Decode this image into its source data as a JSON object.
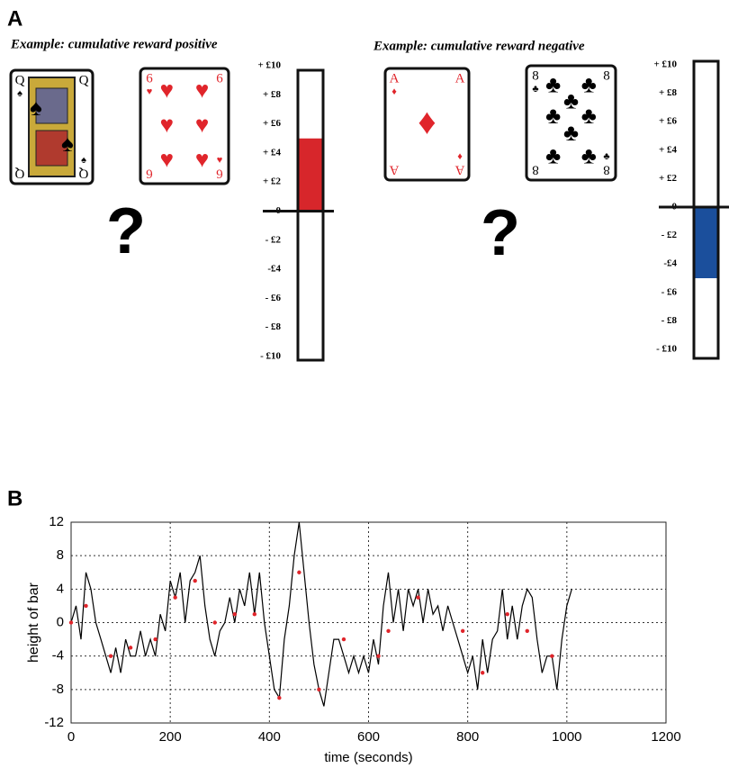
{
  "panel_a": {
    "label": "A",
    "examples": [
      {
        "title": "Example: cumulative reward positive",
        "cards": [
          {
            "rank": "Q",
            "suit": "♠",
            "color": "#000000"
          },
          {
            "rank": "6",
            "suit": "♥",
            "color": "#e0252b"
          }
        ],
        "question": "?",
        "ylim": [
          -10,
          10
        ],
        "ticks": [
          {
            "value": 10,
            "label": "+ £10"
          },
          {
            "value": 8,
            "label": "+ £8"
          },
          {
            "value": 6,
            "label": "+ £6"
          },
          {
            "value": 4,
            "label": "+ £4"
          },
          {
            "value": 2,
            "label": "+ £2"
          },
          0,
          {
            "value": -2,
            "label": "- £2"
          },
          {
            "value": -4,
            "label": "-£4"
          },
          {
            "value": -6,
            "label": "- £6"
          },
          {
            "value": -8,
            "label": "- £8"
          },
          {
            "value": -10,
            "label": "- £10"
          }
        ],
        "bar_value": 5,
        "bar_color": "#d7262b"
      },
      {
        "title": "Example: cumulative reward negative",
        "cards": [
          {
            "rank": "A",
            "suit": "♦",
            "color": "#e0252b"
          },
          {
            "rank": "8",
            "suit": "♣",
            "color": "#000000"
          }
        ],
        "question": "?",
        "ylim": [
          -10,
          10
        ],
        "ticks": [
          {
            "value": 10,
            "label": "+ £10"
          },
          {
            "value": 8,
            "label": "+ £8"
          },
          {
            "value": 6,
            "label": "+ £6"
          },
          {
            "value": 4,
            "label": "+ £4"
          },
          {
            "value": 2,
            "label": "+ £2"
          },
          0,
          {
            "value": -2,
            "label": "- £2"
          },
          {
            "value": -4,
            "label": "-£4"
          },
          {
            "value": -6,
            "label": "- £6"
          },
          {
            "value": -8,
            "label": "- £8"
          },
          {
            "value": -10,
            "label": "- £10"
          }
        ],
        "bar_value": -5,
        "bar_color": "#1b4f9c"
      }
    ]
  },
  "chart_data": {
    "type": "line",
    "panel_label": "B",
    "x_label": "time (seconds)",
    "y_label": "height of bar",
    "xlim": [
      0,
      1200
    ],
    "xticks": [
      0,
      200,
      400,
      600,
      800,
      1000,
      1200
    ],
    "ylim": [
      -12,
      12
    ],
    "yticks": [
      -12,
      -8,
      -4,
      0,
      4,
      8,
      12
    ],
    "grid": true,
    "series": [
      {
        "color": "#000000",
        "x": [
          0,
          10,
          20,
          30,
          40,
          50,
          60,
          70,
          80,
          90,
          100,
          110,
          120,
          130,
          140,
          150,
          160,
          170,
          180,
          190,
          200,
          210,
          220,
          230,
          240,
          250,
          260,
          270,
          280,
          290,
          300,
          310,
          320,
          330,
          340,
          350,
          360,
          370,
          380,
          390,
          400,
          410,
          420,
          430,
          440,
          450,
          460,
          470,
          480,
          490,
          500,
          510,
          520,
          530,
          540,
          550,
          560,
          570,
          580,
          590,
          600,
          610,
          620,
          630,
          640,
          650,
          660,
          670,
          680,
          690,
          700,
          710,
          720,
          730,
          740,
          750,
          760,
          770,
          780,
          790,
          800,
          810,
          820,
          830,
          840,
          850,
          860,
          870,
          880,
          890,
          900,
          910,
          920,
          930,
          940,
          950,
          960,
          970,
          980,
          990,
          1000,
          1010
        ],
        "values": [
          0,
          2,
          -2,
          6,
          4,
          0,
          -2,
          -4,
          -6,
          -3,
          -6,
          -2,
          -4,
          -4,
          -1,
          -4,
          -2,
          -4,
          1,
          -1,
          5,
          3,
          6,
          0,
          5,
          6,
          8,
          2,
          -2,
          -4,
          -1,
          0,
          3,
          0,
          4,
          2,
          6,
          1,
          6,
          0,
          -4,
          -8,
          -9,
          -2,
          2,
          8,
          12,
          6,
          0,
          -5,
          -8,
          -10,
          -6,
          -2,
          -2,
          -4,
          -6,
          -4,
          -6,
          -4,
          -6,
          -2,
          -5,
          2,
          6,
          0,
          4,
          -1,
          4,
          2,
          4,
          0,
          4,
          1,
          2,
          -1,
          2,
          0,
          -2,
          -4,
          -6,
          -4,
          -8,
          -2,
          -6,
          -2,
          -1,
          4,
          -2,
          2,
          -2,
          2,
          4,
          3,
          -2,
          -6,
          -4,
          -4,
          -8,
          -2,
          2,
          4
        ]
      },
      {
        "color": "#e0252b",
        "x": [
          0,
          30,
          80,
          120,
          170,
          210,
          250,
          290,
          330,
          370,
          420,
          460,
          500,
          550,
          620,
          640,
          700,
          790,
          830,
          880,
          920,
          970
        ],
        "values": [
          0,
          2,
          -4,
          -3,
          -2,
          3,
          5,
          0,
          1,
          1,
          -9,
          6,
          -8,
          -2,
          -4,
          -1,
          3,
          -1,
          -6,
          1,
          -1,
          -4
        ]
      }
    ]
  }
}
